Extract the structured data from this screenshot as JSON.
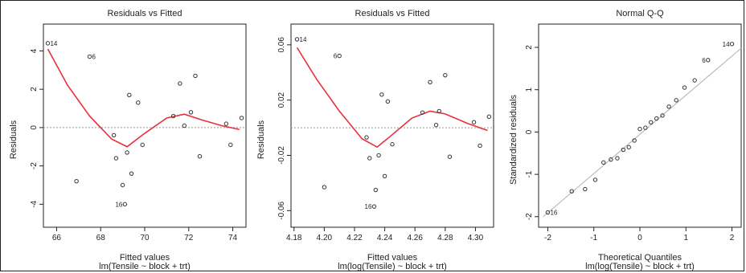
{
  "chart_data": [
    {
      "type": "scatter",
      "title": "Residuals vs Fitted",
      "xlabel": "Fitted values",
      "subtitle": "lm(Tensile ~ block + trt)",
      "ylabel": "Residuals",
      "xlim": [
        65.4,
        74.6
      ],
      "ylim": [
        -5.2,
        5.4
      ],
      "xticks": [
        "66",
        "68",
        "70",
        "72",
        "74"
      ],
      "xtick_values": [
        66,
        68,
        70,
        72,
        74
      ],
      "yticks": [
        "-4",
        "-2",
        "0",
        "2",
        "4"
      ],
      "ytick_values": [
        -4,
        -2,
        0,
        2,
        4
      ],
      "reference_line": 0,
      "points": [
        {
          "x": 65.6,
          "y": 4.4,
          "label": "14"
        },
        {
          "x": 66.9,
          "y": -2.8,
          "label": ""
        },
        {
          "x": 67.5,
          "y": 3.7,
          "label": "6"
        },
        {
          "x": 68.6,
          "y": -0.4,
          "label": ""
        },
        {
          "x": 68.7,
          "y": -1.6,
          "label": ""
        },
        {
          "x": 69.1,
          "y": -4.0,
          "label": "16"
        },
        {
          "x": 69.0,
          "y": -3.0,
          "label": ""
        },
        {
          "x": 69.2,
          "y": -1.3,
          "label": ""
        },
        {
          "x": 69.3,
          "y": 1.7,
          "label": ""
        },
        {
          "x": 69.4,
          "y": -2.4,
          "label": ""
        },
        {
          "x": 69.7,
          "y": 1.3,
          "label": ""
        },
        {
          "x": 69.9,
          "y": -0.9,
          "label": ""
        },
        {
          "x": 71.3,
          "y": 0.6,
          "label": ""
        },
        {
          "x": 71.6,
          "y": 2.3,
          "label": ""
        },
        {
          "x": 71.8,
          "y": 0.1,
          "label": ""
        },
        {
          "x": 72.1,
          "y": 0.8,
          "label": ""
        },
        {
          "x": 72.3,
          "y": 2.7,
          "label": ""
        },
        {
          "x": 72.5,
          "y": -1.5,
          "label": ""
        },
        {
          "x": 73.7,
          "y": 0.2,
          "label": ""
        },
        {
          "x": 73.9,
          "y": -0.9,
          "label": ""
        },
        {
          "x": 74.4,
          "y": 0.5,
          "label": ""
        }
      ],
      "smooth": {
        "x": [
          65.6,
          66.5,
          67.5,
          68.5,
          69.2,
          70.0,
          71.0,
          71.8,
          72.6,
          73.5,
          74.3
        ],
        "y": [
          4.1,
          2.2,
          0.6,
          -0.6,
          -1.0,
          -0.3,
          0.5,
          0.7,
          0.4,
          0.1,
          -0.1
        ]
      }
    },
    {
      "type": "scatter",
      "title": "Residuals vs Fitted",
      "xlabel": "Fitted values",
      "subtitle": "lm(log(Tensile) ~ block + trt)",
      "ylabel": "Residuals",
      "xlim": [
        4.178,
        4.312
      ],
      "ylim": [
        -0.072,
        0.075
      ],
      "xticks": [
        "4.18",
        "4.20",
        "4.22",
        "4.24",
        "4.26",
        "4.28",
        "4.30"
      ],
      "xtick_values": [
        4.18,
        4.2,
        4.22,
        4.24,
        4.26,
        4.28,
        4.3
      ],
      "yticks": [
        "-0.06",
        "-0.02",
        "0.02",
        "0.06"
      ],
      "ytick_values": [
        -0.06,
        -0.02,
        0.02,
        0.06
      ],
      "reference_line": 0,
      "points": [
        {
          "x": 4.182,
          "y": 0.064,
          "label": "14"
        },
        {
          "x": 4.2,
          "y": -0.043,
          "label": ""
        },
        {
          "x": 4.21,
          "y": 0.052,
          "label": "6"
        },
        {
          "x": 4.228,
          "y": -0.007,
          "label": ""
        },
        {
          "x": 4.23,
          "y": -0.022,
          "label": ""
        },
        {
          "x": 4.233,
          "y": -0.057,
          "label": "16"
        },
        {
          "x": 4.234,
          "y": -0.045,
          "label": ""
        },
        {
          "x": 4.236,
          "y": -0.02,
          "label": ""
        },
        {
          "x": 4.238,
          "y": 0.024,
          "label": ""
        },
        {
          "x": 4.24,
          "y": -0.035,
          "label": ""
        },
        {
          "x": 4.242,
          "y": 0.019,
          "label": ""
        },
        {
          "x": 4.245,
          "y": -0.012,
          "label": ""
        },
        {
          "x": 4.265,
          "y": 0.011,
          "label": ""
        },
        {
          "x": 4.27,
          "y": 0.033,
          "label": ""
        },
        {
          "x": 4.274,
          "y": 0.002,
          "label": ""
        },
        {
          "x": 4.276,
          "y": 0.012,
          "label": ""
        },
        {
          "x": 4.28,
          "y": 0.038,
          "label": ""
        },
        {
          "x": 4.283,
          "y": -0.021,
          "label": ""
        },
        {
          "x": 4.299,
          "y": 0.004,
          "label": ""
        },
        {
          "x": 4.303,
          "y": -0.013,
          "label": ""
        },
        {
          "x": 4.309,
          "y": 0.008,
          "label": ""
        }
      ],
      "smooth": {
        "x": [
          4.182,
          4.195,
          4.21,
          4.225,
          4.235,
          4.245,
          4.258,
          4.27,
          4.28,
          4.295,
          4.308
        ],
        "y": [
          0.058,
          0.035,
          0.012,
          -0.008,
          -0.014,
          -0.005,
          0.007,
          0.012,
          0.01,
          0.003,
          -0.002
        ]
      }
    },
    {
      "type": "scatter",
      "title": "Normal Q-Q",
      "xlabel": "Theoretical Quantiles",
      "subtitle": "lm(log(Tensile) ~ block + trt)",
      "ylabel": "Standardized residuals",
      "xlim": [
        -2.2,
        2.2
      ],
      "ylim": [
        -2.25,
        2.55
      ],
      "xticks": [
        "-2",
        "-1",
        "0",
        "1",
        "2"
      ],
      "xtick_values": [
        -2,
        -1,
        0,
        1,
        2
      ],
      "yticks": [
        "-2",
        "-1",
        "0",
        "1",
        "2"
      ],
      "ytick_values": [
        -2,
        -1,
        0,
        1,
        2
      ],
      "reference_line": {
        "from": [
          -2.1,
          -2.0
        ],
        "to": [
          2.2,
          1.98
        ]
      },
      "points": [
        {
          "x": -2.0,
          "y": -1.9,
          "label": "16"
        },
        {
          "x": -1.48,
          "y": -1.4,
          "label": ""
        },
        {
          "x": -1.19,
          "y": -1.35,
          "label": ""
        },
        {
          "x": -0.97,
          "y": -1.13,
          "label": ""
        },
        {
          "x": -0.79,
          "y": -0.72,
          "label": ""
        },
        {
          "x": -0.63,
          "y": -0.65,
          "label": ""
        },
        {
          "x": -0.49,
          "y": -0.62,
          "label": ""
        },
        {
          "x": -0.36,
          "y": -0.42,
          "label": ""
        },
        {
          "x": -0.24,
          "y": -0.36,
          "label": ""
        },
        {
          "x": -0.12,
          "y": -0.2,
          "label": ""
        },
        {
          "x": 0.0,
          "y": 0.07,
          "label": ""
        },
        {
          "x": 0.12,
          "y": 0.1,
          "label": ""
        },
        {
          "x": 0.24,
          "y": 0.23,
          "label": ""
        },
        {
          "x": 0.36,
          "y": 0.32,
          "label": ""
        },
        {
          "x": 0.49,
          "y": 0.39,
          "label": ""
        },
        {
          "x": 0.63,
          "y": 0.6,
          "label": ""
        },
        {
          "x": 0.79,
          "y": 0.75,
          "label": ""
        },
        {
          "x": 0.97,
          "y": 1.05,
          "label": ""
        },
        {
          "x": 1.19,
          "y": 1.22,
          "label": ""
        },
        {
          "x": 1.48,
          "y": 1.7,
          "label": "6"
        },
        {
          "x": 2.0,
          "y": 2.08,
          "label": "14"
        }
      ]
    }
  ],
  "colors": {
    "smooth": "#e8303a",
    "points": "#333333",
    "refline": "#9a9a9a",
    "qqline": "#bbbbbb"
  }
}
